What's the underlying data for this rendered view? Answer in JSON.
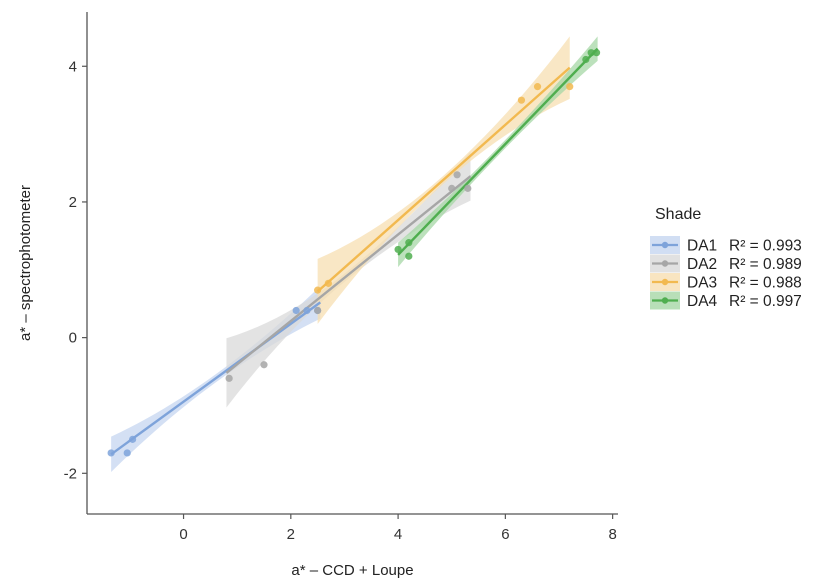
{
  "chart_data": {
    "type": "scatter",
    "xlabel": "a* – CCD + Loupe",
    "ylabel": "a* – spectrophotometer",
    "xlim": [
      -1.8,
      8.1
    ],
    "ylim": [
      -2.6,
      4.8
    ],
    "x_ticks": [
      0,
      2,
      4,
      6,
      8
    ],
    "y_ticks": [
      -2,
      0,
      2,
      4
    ],
    "grid": false,
    "legend": {
      "title": "Shade",
      "placement": "right"
    },
    "series": [
      {
        "name": "DA1",
        "r2_label": "R² = 0.993",
        "color": "#7EA3DA",
        "band_color": "#C5D6F0",
        "points": [
          [
            -1.35,
            -1.7
          ],
          [
            -1.05,
            -1.7
          ],
          [
            -0.95,
            -1.5
          ],
          [
            2.1,
            0.4
          ],
          [
            2.3,
            0.4
          ],
          [
            2.5,
            0.4
          ]
        ],
        "fit": [
          [
            -1.35,
            -1.72
          ],
          [
            2.55,
            0.52
          ]
        ]
      },
      {
        "name": "DA2",
        "r2_label": "R² = 0.989",
        "color": "#A6A6A6",
        "band_color": "#D9D9D9",
        "points": [
          [
            0.85,
            -0.6
          ],
          [
            1.5,
            -0.4
          ],
          [
            2.5,
            0.4
          ],
          [
            5.0,
            2.2
          ],
          [
            5.1,
            2.4
          ],
          [
            5.3,
            2.2
          ]
        ],
        "fit": [
          [
            0.8,
            -0.52
          ],
          [
            5.35,
            2.38
          ]
        ]
      },
      {
        "name": "DA3",
        "r2_label": "R² = 0.988",
        "color": "#F2B94F",
        "band_color": "#F7DFB2",
        "points": [
          [
            2.5,
            0.7
          ],
          [
            2.7,
            0.8
          ],
          [
            6.3,
            3.5
          ],
          [
            6.6,
            3.7
          ],
          [
            7.2,
            3.7
          ]
        ],
        "fit": [
          [
            2.5,
            0.68
          ],
          [
            7.2,
            3.98
          ]
        ]
      },
      {
        "name": "DA4",
        "r2_label": "R² = 0.997",
        "color": "#4FAE4F",
        "band_color": "#A6D7A6",
        "points": [
          [
            4.0,
            1.3
          ],
          [
            4.2,
            1.4
          ],
          [
            4.2,
            1.2
          ],
          [
            7.5,
            4.1
          ],
          [
            7.6,
            4.2
          ],
          [
            7.7,
            4.2
          ]
        ],
        "fit": [
          [
            4.0,
            1.22
          ],
          [
            7.72,
            4.26
          ]
        ]
      }
    ]
  }
}
